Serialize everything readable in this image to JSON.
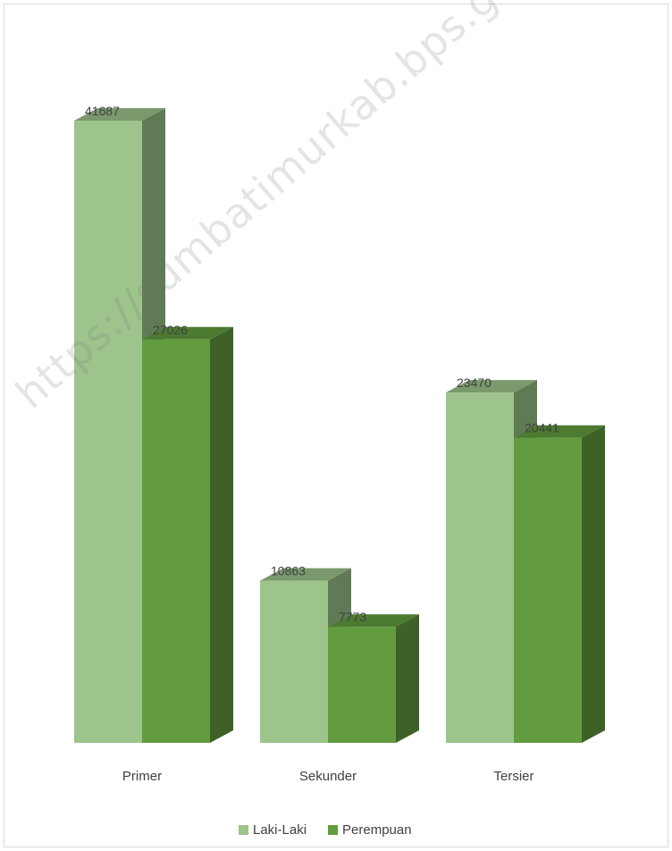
{
  "chart_data": {
    "type": "bar",
    "title": "",
    "categories": [
      "Primer",
      "Sekunder",
      "Tersier"
    ],
    "series": [
      {
        "name": "Laki-Laki",
        "values": [
          41687,
          10863,
          23470
        ],
        "color": "#9dc48b"
      },
      {
        "name": "Perempuan",
        "values": [
          27026,
          7773,
          20441
        ],
        "color": "#629c3f"
      }
    ],
    "xlabel": "",
    "ylabel": "",
    "ylim": [
      0,
      41687
    ],
    "grid": false,
    "legend_position": "bottom",
    "style": "3d-clustered-column",
    "watermark": "https://sumbatimurkab.bps.go.id"
  }
}
